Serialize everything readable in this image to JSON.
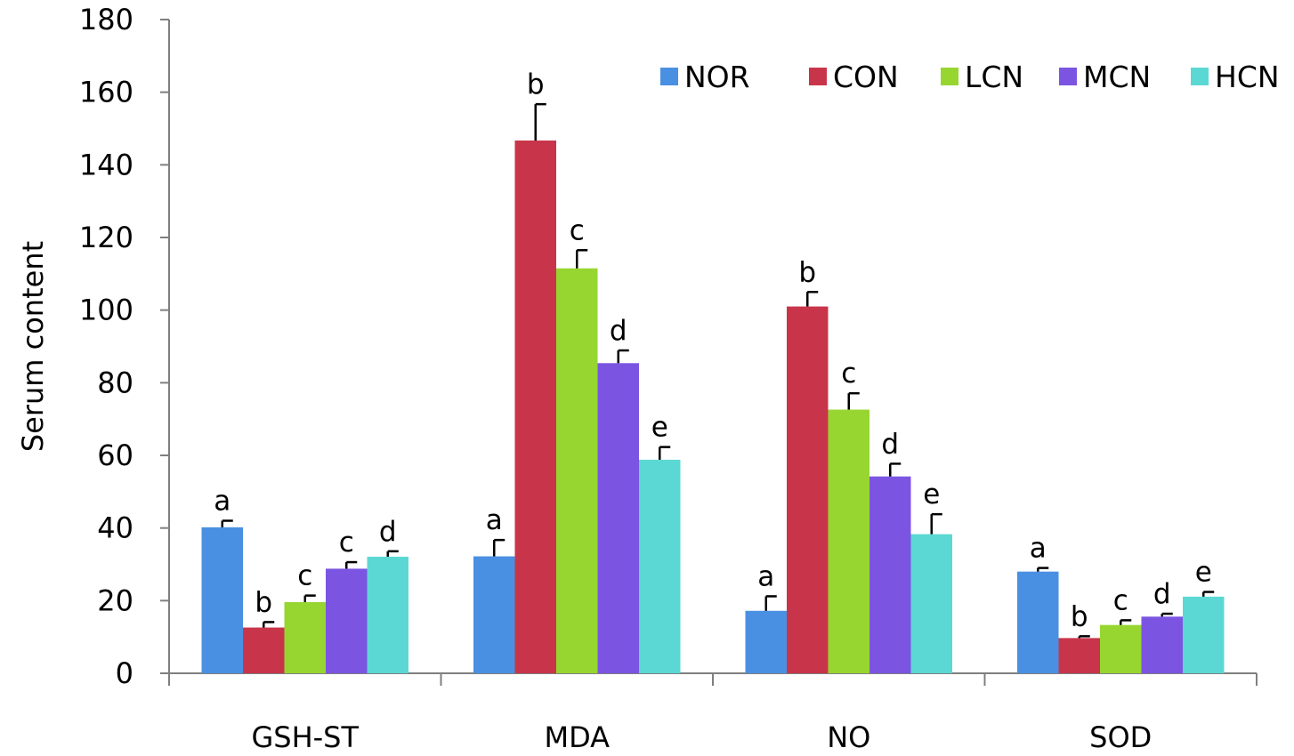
{
  "chart_data": {
    "type": "bar",
    "title": "",
    "xlabel": "",
    "ylabel": "Serum content",
    "ylim": [
      0,
      180
    ],
    "yticks": [
      0,
      20,
      40,
      60,
      80,
      100,
      120,
      140,
      160,
      180
    ],
    "categories": [
      "GSH-ST",
      "MDA",
      "NO",
      "SOD"
    ],
    "grid": false,
    "legend_position": "top-right",
    "series": [
      {
        "name": "NOR",
        "color": "#4a90e2",
        "values": [
          40.2,
          32.2,
          17.2,
          28.0
        ],
        "errors": [
          1.8,
          4.5,
          4.0,
          1.0
        ],
        "labels": [
          "a",
          "a",
          "a",
          "a"
        ]
      },
      {
        "name": "CON",
        "color": "#c8354a",
        "values": [
          12.6,
          146.7,
          101.0,
          9.7
        ],
        "errors": [
          1.5,
          10.0,
          4.0,
          0.5
        ],
        "labels": [
          "b",
          "b",
          "b",
          "b"
        ]
      },
      {
        "name": "LCN",
        "color": "#97d631",
        "values": [
          19.6,
          111.5,
          72.6,
          13.3
        ],
        "errors": [
          1.8,
          5.0,
          4.5,
          1.3
        ],
        "labels": [
          "c",
          "c",
          "c",
          "c"
        ]
      },
      {
        "name": "MCN",
        "color": "#7b55e2",
        "values": [
          28.8,
          85.4,
          54.2,
          15.6
        ],
        "errors": [
          1.8,
          3.5,
          3.5,
          0.8
        ],
        "labels": [
          "c",
          "d",
          "d",
          "d"
        ]
      },
      {
        "name": "HCN",
        "color": "#5bd8d3",
        "values": [
          32.1,
          58.8,
          38.3,
          21.1
        ],
        "errors": [
          1.5,
          3.5,
          5.5,
          1.3
        ],
        "labels": [
          "d",
          "e",
          "e",
          "e"
        ]
      }
    ]
  }
}
